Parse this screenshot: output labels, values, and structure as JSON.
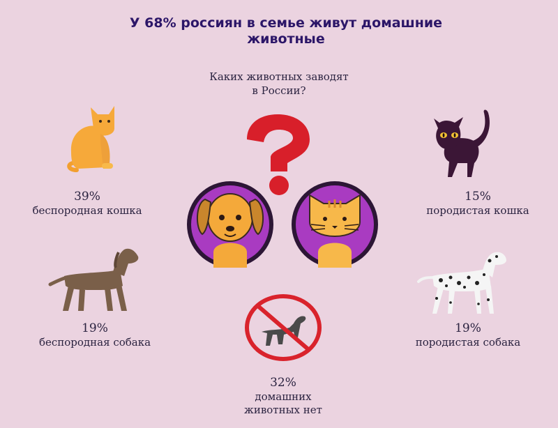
{
  "title_line1": "У 68% россиян в семье живут домашние",
  "title_line2": "животные",
  "subtitle_line1": "Каких животных заводят",
  "subtitle_line2": "в России?",
  "colors": {
    "background": "#ebd3e0",
    "title": "#2c1668",
    "question_mark": "#d81f2a",
    "circle": "#a93bc1",
    "no_sign": "#d9232c"
  },
  "chart_data": {
    "type": "table",
    "title": "У 68% россиян в семье живут домашние животные",
    "subtitle": "Каких животных заводят в России?",
    "items": [
      {
        "category": "беспородная кошка",
        "value": 39,
        "value_label": "39%",
        "icon": "ginger-cat-icon"
      },
      {
        "category": "породистая кошка",
        "value": 15,
        "value_label": "15%",
        "icon": "black-cat-icon"
      },
      {
        "category": "беспородная собака",
        "value": 19,
        "value_label": "19%",
        "icon": "brown-dog-icon"
      },
      {
        "category": "породистая собака",
        "value": 19,
        "value_label": "19%",
        "icon": "dalmatian-icon"
      },
      {
        "category": "домашних животных нет",
        "category_lines": [
          "домашних",
          "животных нет"
        ],
        "value": 32,
        "value_label": "32%",
        "icon": "no-pets-icon"
      }
    ]
  }
}
